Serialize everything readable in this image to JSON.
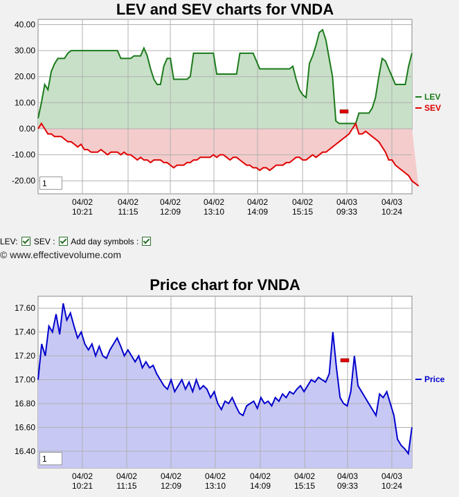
{
  "lev_chart": {
    "title": "LEV and SEV charts for VNDA",
    "zoom_value": "1",
    "x_labels": [
      {
        "date": "04/02",
        "time": "10:21"
      },
      {
        "date": "04/02",
        "time": "11:15"
      },
      {
        "date": "04/02",
        "time": "12:09"
      },
      {
        "date": "04/02",
        "time": "13:10"
      },
      {
        "date": "04/02",
        "time": "14:09"
      },
      {
        "date": "04/02",
        "time": "15:15"
      },
      {
        "date": "04/03",
        "time": "09:33"
      },
      {
        "date": "04/03",
        "time": "10:24"
      }
    ],
    "legend": [
      {
        "label": "LEV",
        "color": "#1a7a1a"
      },
      {
        "label": "SEV",
        "color": "#e00000"
      }
    ]
  },
  "controls": {
    "lev_label": "LEV:",
    "sev_label": "SEV :",
    "day_symbols_label": "Add day symbols :"
  },
  "copyright": "© www.effectivevolume.com",
  "price_chart": {
    "title": "Price chart for VNDA",
    "zoom_value": "1",
    "legend": [
      {
        "label": "Price",
        "color": "#0000cc"
      }
    ]
  },
  "chart_data": [
    {
      "type": "line",
      "title": "LEV and SEV charts for VNDA",
      "ylim": [
        -25,
        42
      ],
      "yticks": [
        "40.00",
        "30.00",
        "20.00",
        "10.00",
        "0.00",
        "-10.00",
        "-20.00"
      ],
      "ytick_values": [
        40,
        30,
        20,
        10,
        0,
        -10,
        -20
      ],
      "series": [
        {
          "name": "LEV",
          "color": "#1a7a1a",
          "fill": "#c8e0c8",
          "values": [
            4,
            10,
            17,
            15,
            22,
            25,
            27,
            27,
            27,
            29,
            30,
            30,
            30,
            30,
            30,
            30,
            30,
            30,
            30,
            30,
            30,
            30,
            30,
            30,
            30,
            27,
            27,
            27,
            27,
            28,
            28,
            28,
            31,
            28,
            23,
            19,
            17,
            17,
            24,
            27,
            27,
            19,
            19,
            19,
            19,
            19,
            20,
            29,
            29,
            29,
            29,
            29,
            29,
            29,
            21,
            21,
            21,
            21,
            21,
            21,
            21,
            29,
            29,
            29,
            29,
            29,
            26,
            23,
            23,
            23,
            23,
            23,
            23,
            23,
            23,
            23,
            23,
            24,
            19,
            15,
            13,
            12,
            25,
            28,
            32,
            37,
            38,
            34,
            27,
            20,
            3,
            2,
            2,
            2,
            2,
            2,
            2,
            6,
            6,
            6,
            6,
            8,
            12,
            20,
            27,
            26,
            23,
            20,
            17,
            17,
            17,
            17,
            24,
            29
          ]
        },
        {
          "name": "SEV",
          "color": "#e00000",
          "fill": "#f4cccc",
          "values": [
            0,
            2,
            0,
            -2,
            -2,
            -3,
            -3,
            -3,
            -4,
            -5,
            -5,
            -6,
            -7,
            -6,
            -8,
            -8,
            -9,
            -9,
            -9,
            -8,
            -9,
            -10,
            -9,
            -9,
            -9,
            -10,
            -9,
            -10,
            -10,
            -11,
            -12,
            -11,
            -12,
            -12,
            -13,
            -12,
            -12,
            -12,
            -13,
            -13,
            -14,
            -15,
            -14,
            -14,
            -14,
            -13,
            -13,
            -12,
            -12,
            -11,
            -11,
            -11,
            -11,
            -10,
            -11,
            -10,
            -10,
            -11,
            -12,
            -11,
            -11,
            -12,
            -13,
            -14,
            -14,
            -15,
            -15,
            -16,
            -15,
            -15,
            -16,
            -15,
            -14,
            -14,
            -14,
            -13,
            -13,
            -12,
            -11,
            -11,
            -12,
            -12,
            -11,
            -10,
            -11,
            -10,
            -9,
            -9,
            -8,
            -7,
            -6,
            -5,
            -4,
            -3,
            -2,
            0,
            2,
            -2,
            -2,
            -1,
            -2,
            -3,
            -4,
            -5,
            -7,
            -9,
            -12,
            -12,
            -14,
            -15,
            -16,
            -17,
            -18,
            -20,
            -21,
            -22
          ]
        }
      ]
    },
    {
      "type": "area",
      "title": "Price chart for VNDA",
      "ylim": [
        16.26,
        17.7
      ],
      "yticks": [
        "17.60",
        "17.40",
        "17.20",
        "17.00",
        "16.80",
        "16.60",
        "16.40"
      ],
      "ytick_values": [
        17.6,
        17.4,
        17.2,
        17.0,
        16.8,
        16.6,
        16.4
      ],
      "series": [
        {
          "name": "Price",
          "color": "#0000cc",
          "fill": "#c8c8f5",
          "values": [
            17.0,
            17.3,
            17.2,
            17.45,
            17.4,
            17.55,
            17.38,
            17.64,
            17.5,
            17.56,
            17.45,
            17.35,
            17.4,
            17.3,
            17.25,
            17.3,
            17.2,
            17.28,
            17.2,
            17.18,
            17.25,
            17.3,
            17.35,
            17.28,
            17.2,
            17.25,
            17.2,
            17.15,
            17.2,
            17.1,
            17.15,
            17.1,
            17.12,
            17.05,
            17.0,
            16.95,
            16.92,
            17.0,
            16.9,
            16.95,
            17.0,
            16.92,
            16.98,
            16.9,
            17.0,
            16.92,
            16.95,
            16.92,
            16.85,
            16.9,
            16.8,
            16.75,
            16.82,
            16.8,
            16.85,
            16.78,
            16.72,
            16.7,
            16.78,
            16.8,
            16.82,
            16.76,
            16.85,
            16.8,
            16.82,
            16.78,
            16.85,
            16.82,
            16.88,
            16.85,
            16.9,
            16.88,
            16.92,
            16.95,
            16.9,
            16.95,
            17.0,
            16.98,
            17.02,
            17.0,
            16.98,
            17.05,
            17.4,
            17.1,
            16.85,
            16.8,
            16.78,
            16.9,
            17.2,
            16.95,
            16.9,
            16.85,
            16.8,
            16.75,
            16.7,
            16.88,
            16.85,
            16.9,
            16.8,
            16.7,
            16.5,
            16.45,
            16.42,
            16.38,
            16.6
          ]
        }
      ]
    }
  ]
}
